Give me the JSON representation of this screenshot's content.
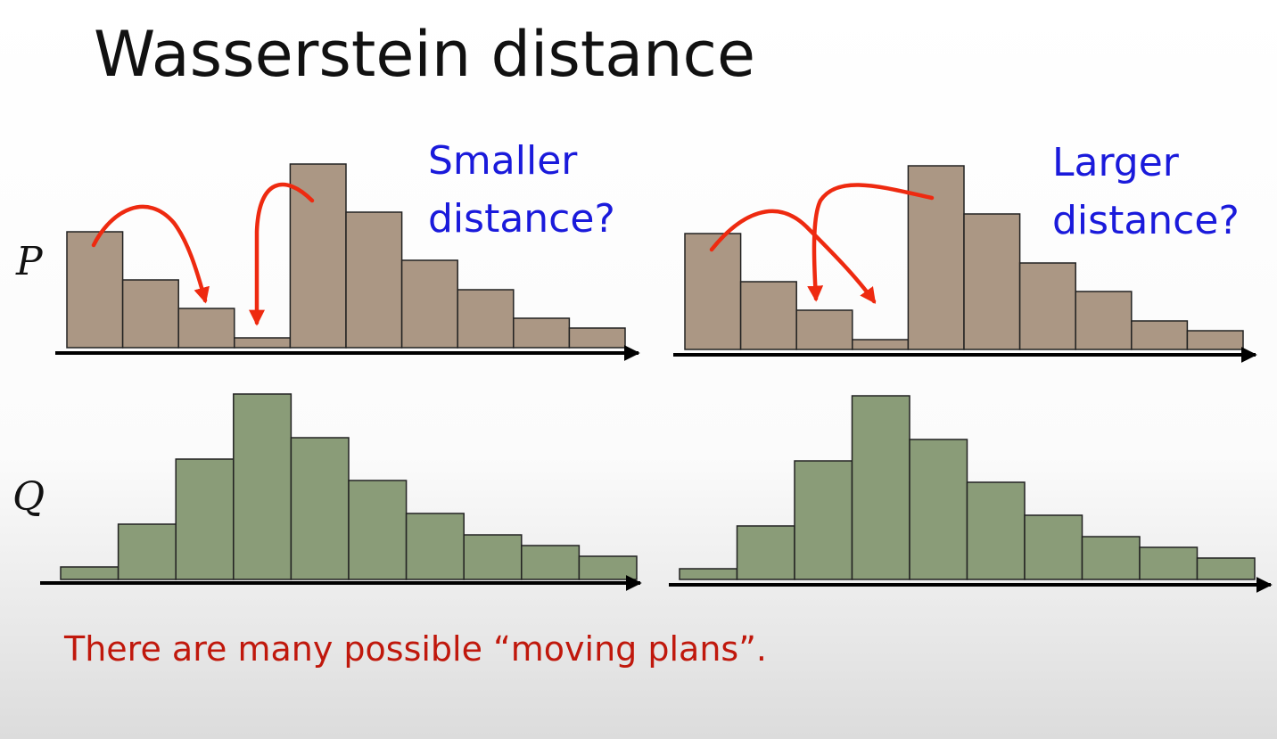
{
  "header": {
    "title": "Wasserstein distance"
  },
  "labels": {
    "p": "P",
    "q": "Q"
  },
  "panels": [
    {
      "caption": [
        "Smaller",
        "distance?"
      ]
    },
    {
      "caption": [
        "Larger",
        "distance?"
      ]
    }
  ],
  "note": "There are many possible “moving plans”."
}
